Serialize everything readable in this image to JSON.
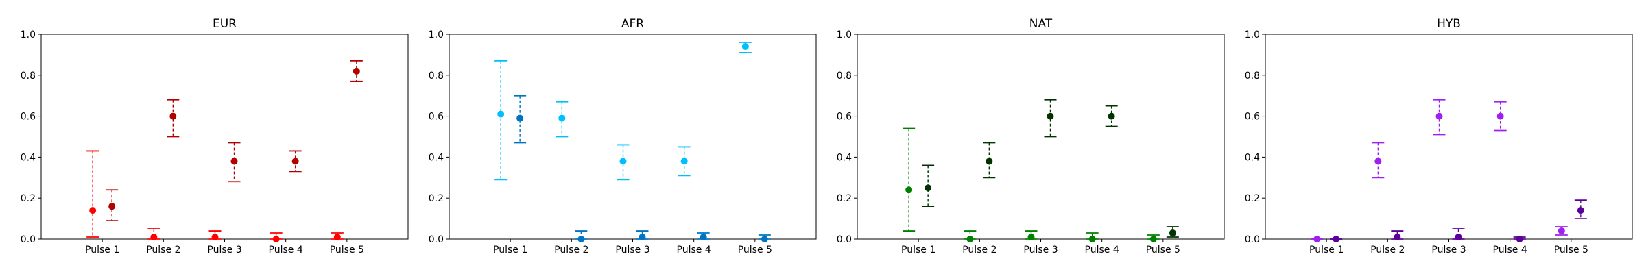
{
  "chart_data": [
    {
      "type": "scatter",
      "title": "EUR",
      "categories": [
        "Pulse 1",
        "Pulse 2",
        "Pulse 3",
        "Pulse 4",
        "Pulse 5"
      ],
      "ylim": [
        0,
        1.0
      ],
      "yticks": [
        "0.0",
        "0.2",
        "0.4",
        "0.6",
        "0.8",
        "1.0"
      ],
      "grid": false,
      "series": [
        {
          "color": "#ff0000",
          "points": [
            {
              "y": 0.14,
              "low": 0.01,
              "high": 0.43
            },
            {
              "y": 0.01,
              "low": 0.0,
              "high": 0.05
            },
            {
              "y": 0.01,
              "low": 0.0,
              "high": 0.04
            },
            {
              "y": 0.0,
              "low": 0.0,
              "high": 0.03
            },
            {
              "y": 0.01,
              "low": 0.0,
              "high": 0.03
            }
          ]
        },
        {
          "color": "#b30000",
          "points": [
            {
              "y": 0.16,
              "low": 0.09,
              "high": 0.24
            },
            {
              "y": 0.6,
              "low": 0.5,
              "high": 0.68
            },
            {
              "y": 0.38,
              "low": 0.28,
              "high": 0.47
            },
            {
              "y": 0.38,
              "low": 0.33,
              "high": 0.43
            },
            {
              "y": 0.82,
              "low": 0.77,
              "high": 0.87
            }
          ]
        }
      ]
    },
    {
      "type": "scatter",
      "title": "AFR",
      "categories": [
        "Pulse 1",
        "Pulse 2",
        "Pulse 3",
        "Pulse 4",
        "Pulse 5"
      ],
      "ylim": [
        0,
        1.0
      ],
      "yticks": [
        "0.0",
        "0.2",
        "0.4",
        "0.6",
        "0.8",
        "1.0"
      ],
      "grid": false,
      "series": [
        {
          "color": "#00bfff",
          "points": [
            {
              "y": 0.61,
              "low": 0.29,
              "high": 0.87
            },
            {
              "y": 0.59,
              "low": 0.5,
              "high": 0.67
            },
            {
              "y": 0.38,
              "low": 0.29,
              "high": 0.46
            },
            {
              "y": 0.38,
              "low": 0.31,
              "high": 0.45
            },
            {
              "y": 0.94,
              "low": 0.91,
              "high": 0.96
            }
          ]
        },
        {
          "color": "#0074c2",
          "points": [
            {
              "y": 0.59,
              "low": 0.47,
              "high": 0.7
            },
            {
              "y": 0.0,
              "low": 0.0,
              "high": 0.04
            },
            {
              "y": 0.01,
              "low": 0.0,
              "high": 0.04
            },
            {
              "y": 0.01,
              "low": 0.0,
              "high": 0.03
            },
            {
              "y": 0.0,
              "low": 0.0,
              "high": 0.02
            }
          ]
        }
      ]
    },
    {
      "type": "scatter",
      "title": "NAT",
      "categories": [
        "Pulse 1",
        "Pulse 2",
        "Pulse 3",
        "Pulse 4",
        "Pulse 5"
      ],
      "ylim": [
        0,
        1.0
      ],
      "yticks": [
        "0.0",
        "0.2",
        "0.4",
        "0.6",
        "0.8",
        "1.0"
      ],
      "grid": false,
      "series": [
        {
          "color": "#008000",
          "points": [
            {
              "y": 0.24,
              "low": 0.04,
              "high": 0.54
            },
            {
              "y": 0.0,
              "low": 0.0,
              "high": 0.04
            },
            {
              "y": 0.01,
              "low": 0.0,
              "high": 0.04
            },
            {
              "y": 0.0,
              "low": 0.0,
              "high": 0.03
            },
            {
              "y": 0.0,
              "low": 0.0,
              "high": 0.02
            }
          ]
        },
        {
          "color": "#003300",
          "points": [
            {
              "y": 0.25,
              "low": 0.16,
              "high": 0.36
            },
            {
              "y": 0.38,
              "low": 0.3,
              "high": 0.47
            },
            {
              "y": 0.6,
              "low": 0.5,
              "high": 0.68
            },
            {
              "y": 0.6,
              "low": 0.55,
              "high": 0.65
            },
            {
              "y": 0.03,
              "low": 0.01,
              "high": 0.06
            }
          ]
        }
      ]
    },
    {
      "type": "scatter",
      "title": "HYB",
      "categories": [
        "Pulse 1",
        "Pulse 2",
        "Pulse 3",
        "Pulse 4",
        "Pulse 5"
      ],
      "ylim": [
        0,
        1.0
      ],
      "yticks": [
        "0.0",
        "0.2",
        "0.4",
        "0.6",
        "0.8",
        "1.0"
      ],
      "grid": false,
      "series": [
        {
          "color": "#a020f0",
          "points": [
            {
              "y": 0.0,
              "low": 0.0,
              "high": 0.0
            },
            {
              "y": 0.38,
              "low": 0.3,
              "high": 0.47
            },
            {
              "y": 0.6,
              "low": 0.51,
              "high": 0.68
            },
            {
              "y": 0.6,
              "low": 0.53,
              "high": 0.67
            },
            {
              "y": 0.04,
              "low": 0.02,
              "high": 0.06
            }
          ]
        },
        {
          "color": "#5c0099",
          "points": [
            {
              "y": 0.0,
              "low": 0.0,
              "high": 0.0
            },
            {
              "y": 0.01,
              "low": 0.0,
              "high": 0.04
            },
            {
              "y": 0.01,
              "low": 0.0,
              "high": 0.05
            },
            {
              "y": 0.0,
              "low": 0.0,
              "high": 0.01
            },
            {
              "y": 0.14,
              "low": 0.1,
              "high": 0.19
            }
          ]
        }
      ]
    }
  ]
}
